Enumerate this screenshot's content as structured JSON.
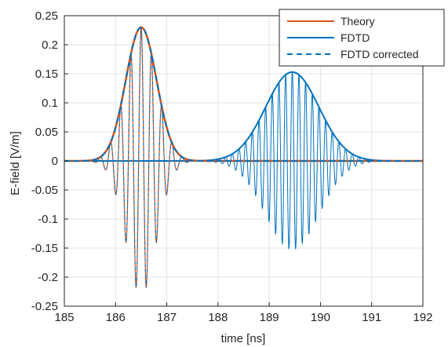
{
  "chart_data": {
    "type": "line",
    "title": "",
    "xlabel": "time [ns]",
    "ylabel": "E-field [V/m]",
    "xlim": [
      185,
      192
    ],
    "ylim": [
      -0.25,
      0.25
    ],
    "x_ticks": [
      "185",
      "186",
      "187",
      "188",
      "189",
      "190",
      "191",
      "192"
    ],
    "y_ticks": [
      "0.25",
      "0.2",
      "0.15",
      "0.1",
      "0.05",
      "0",
      "-0.05",
      "-0.1",
      "-0.15",
      "-0.2",
      "-0.25"
    ],
    "grid": true,
    "legend_position": "top-right",
    "legend": [
      {
        "label": "Theory",
        "color": "#D95319",
        "style": "solid"
      },
      {
        "label": "FDTD",
        "color": "#0072BD",
        "style": "solid"
      },
      {
        "label": "FDTD corrected",
        "color": "#0072BD",
        "style": "dashed"
      }
    ],
    "series": [
      {
        "name": "Theory",
        "color": "#D95319",
        "description_of_shape": "modulated Gaussian pulse with envelope",
        "envelope": {
          "center": 186.5,
          "peak": 0.23,
          "sigma": 0.3
        },
        "carrier_period": 0.2
      },
      {
        "name": "FDTD",
        "color": "#0072BD",
        "envelope": {
          "center": 189.45,
          "peak": 0.153,
          "sigma": 0.52
        },
        "carrier_period": 0.13
      },
      {
        "name": "FDTD corrected",
        "color": "#0072BD",
        "envelope": {
          "center": 186.5,
          "peak": 0.23,
          "sigma": 0.3
        },
        "carrier_period": 0.2
      }
    ]
  }
}
